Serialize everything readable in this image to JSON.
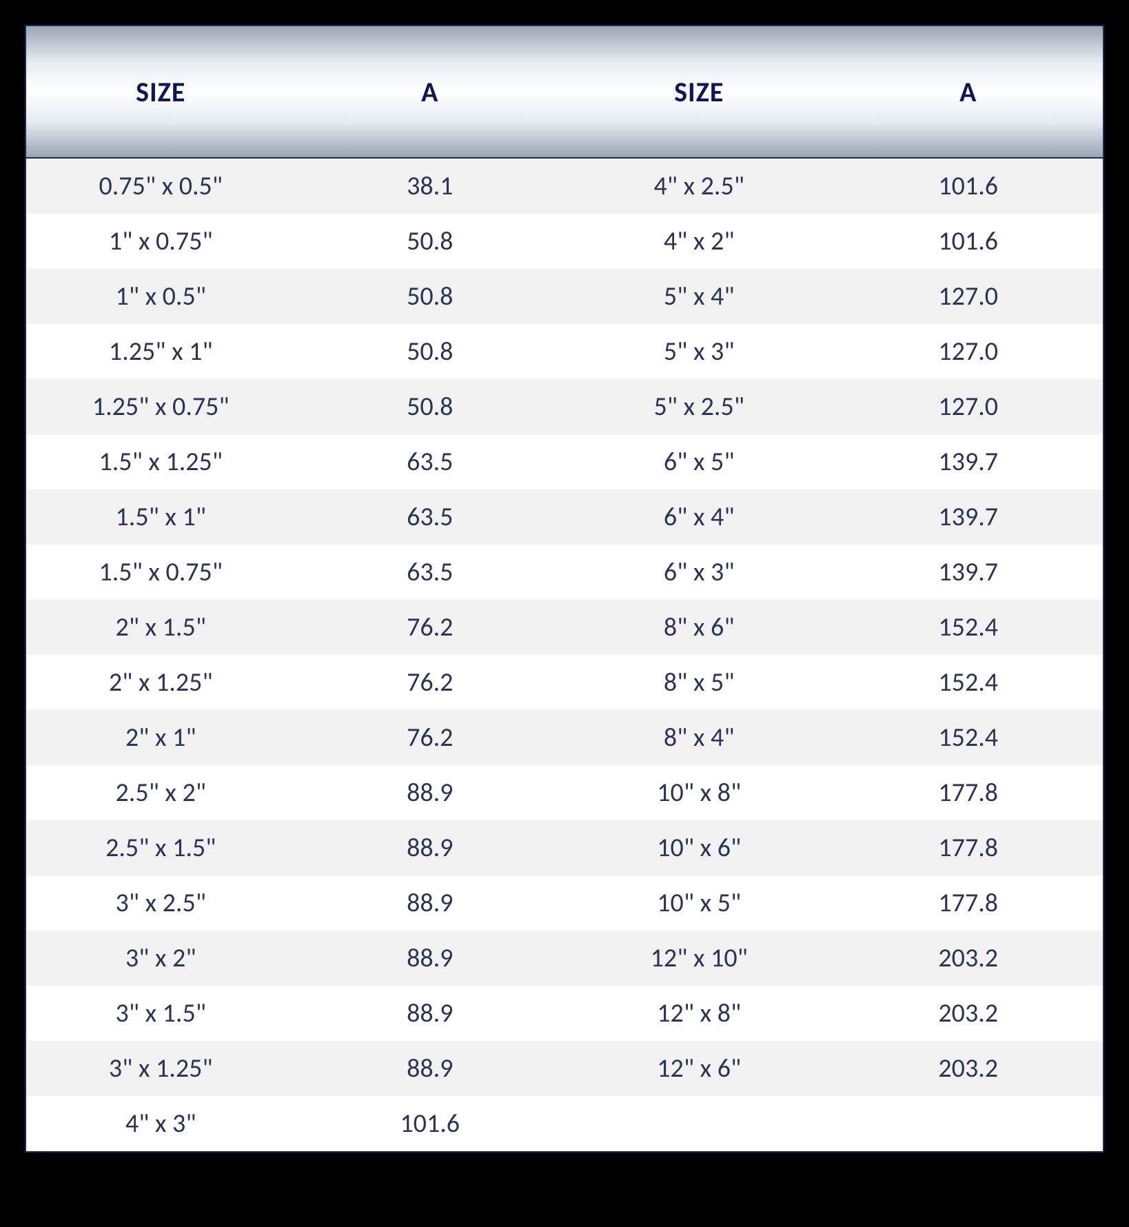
{
  "table": {
    "type": "table",
    "background_color": "#ffffff",
    "border_color": "#1a2a5a",
    "outer_background": "#000000",
    "header": {
      "labels": [
        "SIZE",
        "A",
        "SIZE",
        "A"
      ],
      "text_color": "#11155a",
      "font_size_pt": 30,
      "font_weight": "bold",
      "gradient_stops": [
        "#9aa6b3",
        "#e8edf2",
        "#ffffff",
        "#e8edf2",
        "#9aa6b3"
      ]
    },
    "body": {
      "text_color": "#2a3555",
      "font_size_pt": 28,
      "row_colors": {
        "odd": "#f2f2f2",
        "even": "#ffffff"
      },
      "columns": [
        "size_left",
        "a_left",
        "size_right",
        "a_right"
      ],
      "rows": [
        {
          "size_left": "0.75\" x 0.5\"",
          "a_left": "38.1",
          "size_right": "4\" x 2.5\"",
          "a_right": "101.6"
        },
        {
          "size_left": "1\" x 0.75\"",
          "a_left": "50.8",
          "size_right": "4\" x 2\"",
          "a_right": "101.6"
        },
        {
          "size_left": "1\" x 0.5\"",
          "a_left": "50.8",
          "size_right": "5\" x 4\"",
          "a_right": "127.0"
        },
        {
          "size_left": "1.25\" x 1\"",
          "a_left": "50.8",
          "size_right": "5\" x 3\"",
          "a_right": "127.0"
        },
        {
          "size_left": "1.25\" x 0.75\"",
          "a_left": "50.8",
          "size_right": "5\" x 2.5\"",
          "a_right": "127.0"
        },
        {
          "size_left": "1.5\" x 1.25\"",
          "a_left": "63.5",
          "size_right": "6\" x 5\"",
          "a_right": "139.7"
        },
        {
          "size_left": "1.5\" x 1\"",
          "a_left": "63.5",
          "size_right": "6\" x 4\"",
          "a_right": "139.7"
        },
        {
          "size_left": "1.5\" x 0.75\"",
          "a_left": "63.5",
          "size_right": "6\" x 3\"",
          "a_right": "139.7"
        },
        {
          "size_left": "2\" x 1.5\"",
          "a_left": "76.2",
          "size_right": "8\" x 6\"",
          "a_right": "152.4"
        },
        {
          "size_left": "2\" x 1.25\"",
          "a_left": "76.2",
          "size_right": "8\" x 5\"",
          "a_right": "152.4"
        },
        {
          "size_left": "2\" x 1\"",
          "a_left": "76.2",
          "size_right": "8\" x 4\"",
          "a_right": "152.4"
        },
        {
          "size_left": "2.5\" x 2\"",
          "a_left": "88.9",
          "size_right": "10\" x 8\"",
          "a_right": "177.8"
        },
        {
          "size_left": "2.5\" x 1.5\"",
          "a_left": "88.9",
          "size_right": "10\" x 6\"",
          "a_right": "177.8"
        },
        {
          "size_left": "3\" x 2.5\"",
          "a_left": "88.9",
          "size_right": "10\" x 5\"",
          "a_right": "177.8"
        },
        {
          "size_left": "3\" x 2\"",
          "a_left": "88.9",
          "size_right": "12\" x 10\"",
          "a_right": "203.2"
        },
        {
          "size_left": "3\" x 1.5\"",
          "a_left": "88.9",
          "size_right": "12\" x 8\"",
          "a_right": "203.2"
        },
        {
          "size_left": "3\" x 1.25\"",
          "a_left": "88.9",
          "size_right": "12\" x 6\"",
          "a_right": "203.2"
        },
        {
          "size_left": "4\" x 3\"",
          "a_left": "101.6",
          "size_right": "",
          "a_right": ""
        }
      ]
    }
  }
}
